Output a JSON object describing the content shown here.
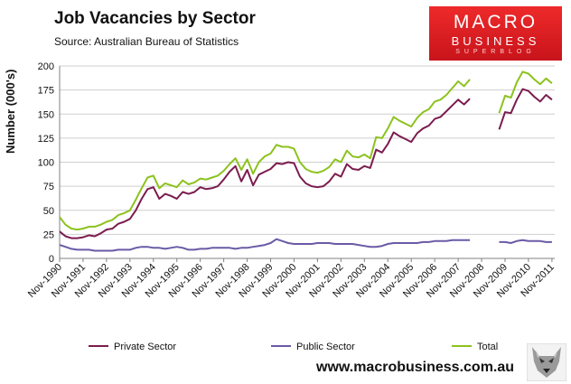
{
  "header": {
    "title": "Job Vacancies by Sector",
    "source": "Source: Australian Bureau of Statistics"
  },
  "logo": {
    "line1": "MACRO",
    "line2": "BUSINESS",
    "line3": "SUPERBLOG"
  },
  "footer": {
    "url": "www.macrobusiness.com.au"
  },
  "colors": {
    "private": "#7b1c4e",
    "public": "#6a5aa6",
    "total": "#8cc21e",
    "grid": "#cfcfcf",
    "axis": "#808080"
  },
  "chart_data": {
    "type": "line",
    "title": "Job Vacancies by Sector",
    "ylabel": "Number (000's)",
    "xlabel": "",
    "ylim": [
      0,
      200
    ],
    "yticks": [
      0,
      25,
      50,
      75,
      100,
      125,
      150,
      175,
      200
    ],
    "xlim": [
      1990.83,
      2011.95
    ],
    "xticks": [
      {
        "label": "Nov-1990",
        "x": 1990.83
      },
      {
        "label": "Nov-1991",
        "x": 1991.83
      },
      {
        "label": "Nov-1992",
        "x": 1992.83
      },
      {
        "label": "Nov-1993",
        "x": 1993.83
      },
      {
        "label": "Nov-1994",
        "x": 1994.83
      },
      {
        "label": "Nov-1995",
        "x": 1995.83
      },
      {
        "label": "Nov-1996",
        "x": 1996.83
      },
      {
        "label": "Nov-1997",
        "x": 1997.83
      },
      {
        "label": "Nov-1998",
        "x": 1998.83
      },
      {
        "label": "Nov-1999",
        "x": 1999.83
      },
      {
        "label": "Nov-2000",
        "x": 2000.83
      },
      {
        "label": "Nov-2001",
        "x": 2001.83
      },
      {
        "label": "Nov-2002",
        "x": 2002.83
      },
      {
        "label": "Nov-2003",
        "x": 2003.83
      },
      {
        "label": "Nov-2004",
        "x": 2004.83
      },
      {
        "label": "Nov-2005",
        "x": 2005.83
      },
      {
        "label": "Nov-2006",
        "x": 2006.83
      },
      {
        "label": "Nov-2007",
        "x": 2007.83
      },
      {
        "label": "Nov-2008",
        "x": 2008.83
      },
      {
        "label": "Nov-2009",
        "x": 2009.83
      },
      {
        "label": "Nov-2010",
        "x": 2010.83
      },
      {
        "label": "Nov-2011",
        "x": 2011.83
      }
    ],
    "legend_position": "bottom",
    "series": [
      {
        "name": "Private Sector",
        "color": "#7b1c4e",
        "segments": [
          {
            "x": [
              1990.83,
              1991.08,
              1991.33,
              1991.58,
              1991.83,
              1992.08,
              1992.33,
              1992.58,
              1992.83,
              1993.08,
              1993.33,
              1993.58,
              1993.83,
              1994.08,
              1994.33,
              1994.58,
              1994.83,
              1995.08,
              1995.33,
              1995.58,
              1995.83,
              1996.08,
              1996.33,
              1996.58,
              1996.83,
              1997.08,
              1997.33,
              1997.58,
              1997.83,
              1998.08,
              1998.33,
              1998.58,
              1998.83,
              1999.08,
              1999.33,
              1999.58,
              1999.83,
              2000.08,
              2000.33,
              2000.58,
              2000.83,
              2001.08,
              2001.33,
              2001.58,
              2001.83,
              2002.08,
              2002.33,
              2002.58,
              2002.83,
              2003.08,
              2003.33,
              2003.58,
              2003.83,
              2004.08,
              2004.33,
              2004.58,
              2004.83,
              2005.08,
              2005.33,
              2005.58,
              2005.83,
              2006.08,
              2006.33,
              2006.58,
              2006.83,
              2007.08,
              2007.33,
              2007.58,
              2007.83,
              2008.08,
              2008.33
            ],
            "y": [
              28,
              23,
              21,
              21,
              22,
              24,
              23,
              26,
              30,
              31,
              36,
              38,
              41,
              50,
              62,
              72,
              74,
              62,
              67,
              65,
              62,
              69,
              67,
              69,
              74,
              72,
              73,
              75,
              82,
              90,
              96,
              80,
              92,
              76,
              87,
              90,
              93,
              99,
              98,
              100,
              99,
              85,
              78,
              75,
              74,
              75,
              80,
              88,
              85,
              98,
              93,
              92,
              96,
              94,
              113,
              110,
              119,
              131,
              127,
              124,
              121,
              130,
              135,
              138,
              145,
              147,
              153,
              159,
              165,
              160,
              166
            ]
          },
          {
            "x": [
              2009.58,
              2009.83,
              2010.08,
              2010.33,
              2010.58,
              2010.83,
              2011.08,
              2011.33,
              2011.58,
              2011.83
            ],
            "y": [
              134,
              152,
              151,
              165,
              176,
              174,
              168,
              163,
              170,
              165
            ]
          }
        ]
      },
      {
        "name": "Public Sector",
        "color": "#6a5aa6",
        "segments": [
          {
            "x": [
              1990.83,
              1991.08,
              1991.33,
              1991.58,
              1991.83,
              1992.08,
              1992.33,
              1992.58,
              1992.83,
              1993.08,
              1993.33,
              1993.58,
              1993.83,
              1994.08,
              1994.33,
              1994.58,
              1994.83,
              1995.08,
              1995.33,
              1995.58,
              1995.83,
              1996.08,
              1996.33,
              1996.58,
              1996.83,
              1997.08,
              1997.33,
              1997.58,
              1997.83,
              1998.08,
              1998.33,
              1998.58,
              1998.83,
              1999.08,
              1999.33,
              1999.58,
              1999.83,
              2000.08,
              2000.33,
              2000.58,
              2000.83,
              2001.08,
              2001.33,
              2001.58,
              2001.83,
              2002.08,
              2002.33,
              2002.58,
              2002.83,
              2003.08,
              2003.33,
              2003.58,
              2003.83,
              2004.08,
              2004.33,
              2004.58,
              2004.83,
              2005.08,
              2005.33,
              2005.58,
              2005.83,
              2006.08,
              2006.33,
              2006.58,
              2006.83,
              2007.08,
              2007.33,
              2007.58,
              2007.83,
              2008.08,
              2008.33
            ],
            "y": [
              14,
              12,
              10,
              9,
              9,
              9,
              8,
              8,
              8,
              8,
              9,
              9,
              9,
              11,
              12,
              12,
              11,
              11,
              10,
              11,
              12,
              11,
              9,
              9,
              10,
              10,
              11,
              11,
              11,
              11,
              10,
              11,
              11,
              12,
              13,
              14,
              16,
              20,
              18,
              16,
              15,
              15,
              15,
              15,
              16,
              16,
              16,
              15,
              15,
              15,
              15,
              14,
              13,
              12,
              12,
              13,
              15,
              16,
              16,
              16,
              16,
              16,
              17,
              17,
              18,
              18,
              18,
              19,
              19,
              19,
              19
            ]
          },
          {
            "x": [
              2009.58,
              2009.83,
              2010.08,
              2010.33,
              2010.58,
              2010.83,
              2011.08,
              2011.33,
              2011.58,
              2011.83
            ],
            "y": [
              17,
              17,
              16,
              18,
              19,
              18,
              18,
              18,
              17,
              17
            ]
          }
        ]
      },
      {
        "name": "Total",
        "color": "#8cc21e",
        "segments": [
          {
            "x": [
              1990.83,
              1991.08,
              1991.33,
              1991.58,
              1991.83,
              1992.08,
              1992.33,
              1992.58,
              1992.83,
              1993.08,
              1993.33,
              1993.58,
              1993.83,
              1994.08,
              1994.33,
              1994.58,
              1994.83,
              1995.08,
              1995.33,
              1995.58,
              1995.83,
              1996.08,
              1996.33,
              1996.58,
              1996.83,
              1997.08,
              1997.33,
              1997.58,
              1997.83,
              1998.08,
              1998.33,
              1998.58,
              1998.83,
              1999.08,
              1999.33,
              1999.58,
              1999.83,
              2000.08,
              2000.33,
              2000.58,
              2000.83,
              2001.08,
              2001.33,
              2001.58,
              2001.83,
              2002.08,
              2002.33,
              2002.58,
              2002.83,
              2003.08,
              2003.33,
              2003.58,
              2003.83,
              2004.08,
              2004.33,
              2004.58,
              2004.83,
              2005.08,
              2005.33,
              2005.58,
              2005.83,
              2006.08,
              2006.33,
              2006.58,
              2006.83,
              2007.08,
              2007.33,
              2007.58,
              2007.83,
              2008.08,
              2008.33
            ],
            "y": [
              43,
              35,
              31,
              30,
              31,
              33,
              33,
              35,
              38,
              40,
              45,
              47,
              50,
              61,
              73,
              84,
              86,
              73,
              78,
              76,
              74,
              81,
              77,
              79,
              83,
              82,
              84,
              86,
              91,
              98,
              104,
              92,
              103,
              88,
              100,
              106,
              109,
              118,
              116,
              116,
              114,
              100,
              93,
              90,
              89,
              91,
              95,
              103,
              100,
              112,
              106,
              105,
              108,
              104,
              126,
              125,
              135,
              147,
              143,
              140,
              137,
              146,
              152,
              155,
              163,
              165,
              170,
              177,
              184,
              179,
              186
            ]
          },
          {
            "x": [
              2009.58,
              2009.83,
              2010.08,
              2010.33,
              2010.58,
              2010.83,
              2011.08,
              2011.33,
              2011.58,
              2011.83
            ],
            "y": [
              151,
              169,
              167,
              183,
              194,
              192,
              186,
              181,
              187,
              182
            ]
          }
        ]
      }
    ]
  }
}
